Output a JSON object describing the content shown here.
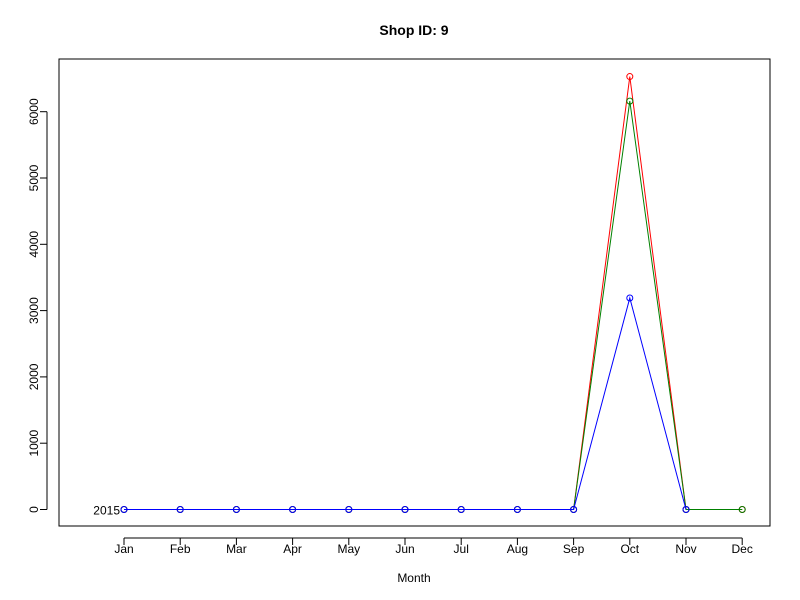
{
  "chart_data": {
    "type": "line",
    "title": "Shop ID: 9",
    "xlabel": "Month",
    "ylabel": "",
    "categories": [
      "Jan",
      "Feb",
      "Mar",
      "Apr",
      "May",
      "Jun",
      "Jul",
      "Aug",
      "Sep",
      "Oct",
      "Nov",
      "Dec"
    ],
    "ylim": [
      -250,
      6800
    ],
    "yticks": [
      0,
      1000,
      2000,
      3000,
      4000,
      5000,
      6000
    ],
    "series": [
      {
        "color": "#ff0000",
        "values": [
          0,
          0,
          0,
          0,
          0,
          0,
          0,
          0,
          0,
          6530,
          0,
          0
        ]
      },
      {
        "color": "#008000",
        "values": [
          0,
          0,
          0,
          0,
          0,
          0,
          0,
          0,
          0,
          6160,
          0,
          0
        ]
      },
      {
        "color": "#0000ff",
        "values": [
          0,
          0,
          0,
          0,
          0,
          0,
          0,
          0,
          0,
          3190,
          0,
          null
        ]
      }
    ],
    "annotations": [
      {
        "text": "2015",
        "x": "Jan",
        "y": 0
      }
    ]
  }
}
